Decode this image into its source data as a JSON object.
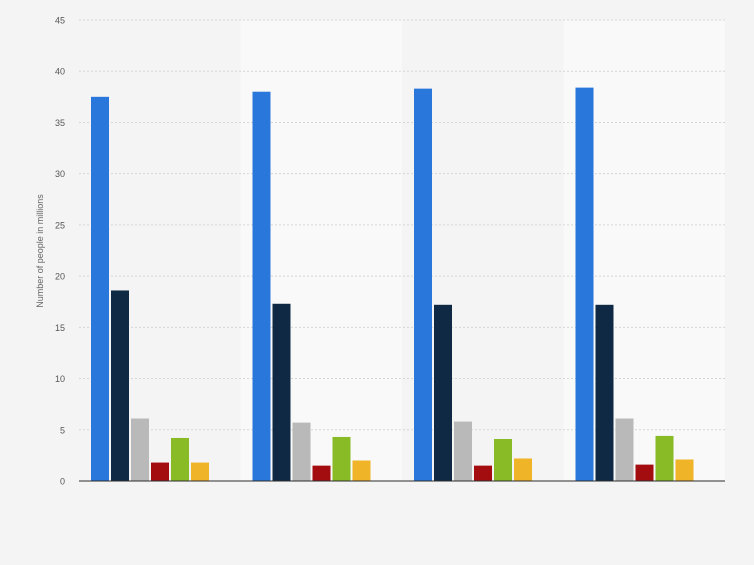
{
  "chart_data": {
    "type": "bar",
    "title": "",
    "xlabel": "",
    "ylabel": "Number of people in millions",
    "ylim": [
      0,
      45
    ],
    "yticks": [
      0,
      5,
      10,
      15,
      20,
      25,
      30,
      35,
      40,
      45
    ],
    "grid": true,
    "legend": "none",
    "categories": [
      "",
      "",
      "",
      ""
    ],
    "series": [
      {
        "color": "#2a77db",
        "values": [
          37.5,
          38.0,
          38.3,
          38.4
        ]
      },
      {
        "color": "#0f2944",
        "values": [
          18.6,
          17.3,
          17.2,
          17.2
        ]
      },
      {
        "color": "#b9b9b9",
        "values": [
          6.1,
          5.7,
          5.8,
          6.1
        ]
      },
      {
        "color": "#a30d10",
        "values": [
          1.8,
          1.5,
          1.5,
          1.6
        ]
      },
      {
        "color": "#88bb26",
        "values": [
          4.2,
          4.3,
          4.1,
          4.4
        ]
      },
      {
        "color": "#f0b429",
        "values": [
          1.8,
          2.0,
          2.2,
          2.1
        ]
      }
    ]
  }
}
